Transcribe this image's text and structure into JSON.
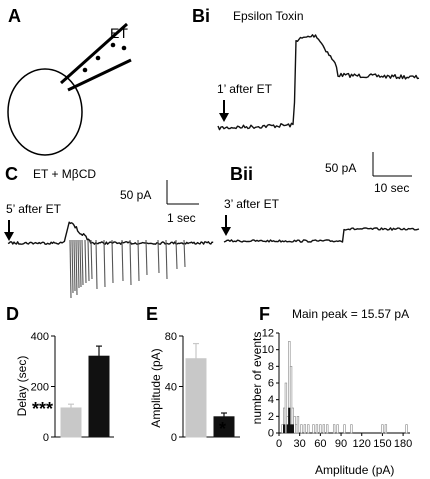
{
  "figure": {
    "panels": {
      "A": {
        "letter": "A",
        "drug_label": "ET"
      },
      "Bi": {
        "letter": "Bi",
        "title": "Epsilon Toxin",
        "time_label": "1’ after ET",
        "scale_current": "50 pA",
        "scale_time": "10 sec"
      },
      "C": {
        "letter": "C",
        "title": "ET + MβCD",
        "time_label": "5’ after ET",
        "scale_current": "50 pA",
        "scale_time": "1 sec"
      },
      "Bii": {
        "letter": "Bii",
        "time_label": "3’ after ET"
      },
      "D": {
        "letter": "D",
        "ylabel": "Delay (sec)",
        "significance": "***"
      },
      "E": {
        "letter": "E",
        "ylabel": "Amplitude (pA)",
        "significance": "*"
      },
      "F": {
        "letter": "F",
        "title": "Main peak = 15.57 pA",
        "ylabel": "number of events",
        "xlabel": "Amplitude (pA)"
      }
    }
  },
  "chart_data": [
    {
      "type": "bar",
      "panel": "D",
      "ylabel": "Delay (sec)",
      "ylim": [
        0,
        400
      ],
      "yticks": [
        "0",
        "200",
        "400"
      ],
      "series": [
        {
          "values": [
            115,
            320
          ],
          "errors": [
            15,
            40
          ],
          "colors": [
            "#c8c8c8",
            "#111111"
          ]
        }
      ],
      "annotation": "***"
    },
    {
      "type": "bar",
      "panel": "E",
      "ylabel": "Amplitude (pA)",
      "ylim": [
        0,
        80
      ],
      "yticks": [
        "0",
        "40",
        "80"
      ],
      "series": [
        {
          "values": [
            62,
            16
          ],
          "errors": [
            12,
            3
          ],
          "colors": [
            "#c8c8c8",
            "#111111"
          ]
        }
      ],
      "annotation": "*"
    },
    {
      "type": "bar",
      "panel": "F",
      "title": "Main peak = 15.57 pA",
      "xlabel": "Amplitude (pA)",
      "ylabel": "number of events",
      "xlim": [
        0,
        190
      ],
      "ylim": [
        0,
        12
      ],
      "xticks": [
        "0",
        "30",
        "60",
        "90",
        "120",
        "150",
        "180"
      ],
      "yticks": [
        "0",
        "2",
        "4",
        "6",
        "8",
        "10",
        "12"
      ],
      "bin_width": 2.5,
      "series": [
        {
          "color": "#c8c8c8",
          "bins": [
            [
              5,
              1
            ],
            [
              7.5,
              3
            ],
            [
              10,
              6
            ],
            [
              12.5,
              2
            ],
            [
              15,
              11
            ],
            [
              17.5,
              8
            ],
            [
              20,
              3
            ],
            [
              22.5,
              2
            ],
            [
              25,
              1
            ],
            [
              27.5,
              2
            ],
            [
              32.5,
              1
            ],
            [
              37.5,
              1
            ],
            [
              42.5,
              1
            ],
            [
              50,
              1
            ],
            [
              55,
              1
            ],
            [
              60,
              1
            ],
            [
              65,
              1
            ],
            [
              70,
              1
            ],
            [
              80,
              1
            ],
            [
              85,
              1
            ],
            [
              95,
              1
            ],
            [
              105,
              1
            ],
            [
              150,
              1
            ],
            [
              155,
              1
            ],
            [
              185,
              1
            ]
          ]
        },
        {
          "color": "#111111",
          "bins": [
            [
              7.5,
              1
            ],
            [
              12.5,
              1
            ],
            [
              15,
              3
            ],
            [
              17.5,
              1
            ],
            [
              20,
              1
            ]
          ]
        }
      ]
    }
  ]
}
